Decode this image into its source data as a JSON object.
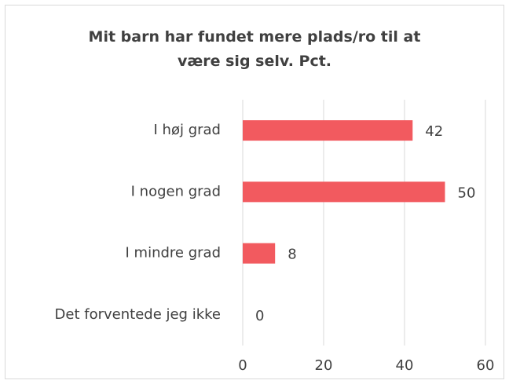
{
  "chart_data": {
    "type": "bar",
    "orientation": "horizontal",
    "title": "Mit barn har fundet mere plads/ro til at være sig selv. Pct.",
    "categories": [
      "I høj grad",
      "I nogen grad",
      "I mindre grad",
      "Det forventede jeg ikke"
    ],
    "values": [
      42,
      50,
      8,
      0
    ],
    "color": "#f25a5f",
    "xlim": [
      0,
      60
    ],
    "xticks": [
      0,
      20,
      40,
      60
    ],
    "grid": true
  }
}
